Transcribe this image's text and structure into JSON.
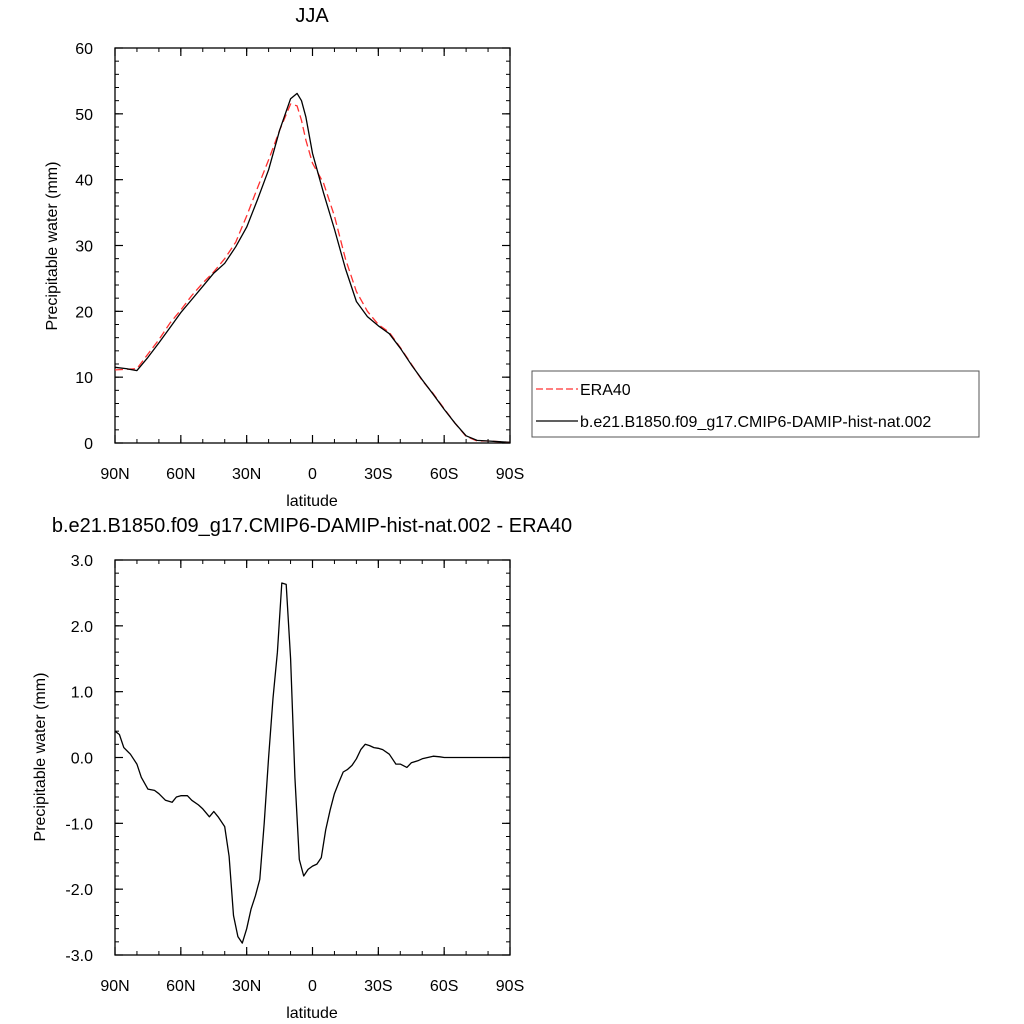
{
  "chart_data": [
    {
      "type": "line",
      "title": "JJA",
      "xlabel": "latitude",
      "ylabel": "Precipitable water (mm)",
      "xlim": [
        90,
        -90
      ],
      "ylim": [
        0,
        60
      ],
      "xticks": [
        {
          "value": 90,
          "label": "90N"
        },
        {
          "value": 60,
          "label": "60N"
        },
        {
          "value": 30,
          "label": "30N"
        },
        {
          "value": 0,
          "label": "0"
        },
        {
          "value": -30,
          "label": "30S"
        },
        {
          "value": -60,
          "label": "60S"
        },
        {
          "value": -90,
          "label": "90S"
        }
      ],
      "yticks": [
        {
          "value": 0,
          "label": "0"
        },
        {
          "value": 10,
          "label": "10"
        },
        {
          "value": 20,
          "label": "20"
        },
        {
          "value": 30,
          "label": "30"
        },
        {
          "value": 40,
          "label": "40"
        },
        {
          "value": 50,
          "label": "50"
        },
        {
          "value": 60,
          "label": "60"
        }
      ],
      "legend": {
        "placement": "right"
      },
      "series": [
        {
          "name": "ERA40",
          "color": "#ff3030",
          "dash": "dashed",
          "x": [
            90,
            85,
            80,
            75,
            70,
            65,
            60,
            55,
            50,
            45,
            40,
            35,
            30,
            25,
            20,
            15,
            10,
            7,
            5,
            3,
            0,
            -5,
            -10,
            -15,
            -20,
            -25,
            -30,
            -35,
            -40,
            -45,
            -50,
            -55,
            -60,
            -65,
            -70,
            -75,
            -80,
            -85,
            -90
          ],
          "y": [
            11.1,
            11.2,
            11.3,
            13.5,
            15.7,
            18.2,
            20.2,
            22.4,
            24.3,
            26.0,
            28.0,
            30.5,
            34.5,
            38.8,
            43.0,
            47.5,
            51.5,
            51.2,
            49.0,
            46.0,
            42.5,
            39.5,
            34.5,
            28.0,
            23.0,
            20.0,
            18.0,
            16.8,
            14.5,
            12.0,
            9.5,
            7.5,
            5.2,
            3.0,
            1.0,
            0.3,
            0.3,
            0.2,
            0.1
          ]
        },
        {
          "name": "b.e21.B1850.f09_g17.CMIP6-DAMIP-hist-nat.002",
          "color": "#000000",
          "dash": "solid",
          "x": [
            90,
            85,
            80,
            75,
            70,
            65,
            60,
            55,
            50,
            45,
            40,
            35,
            30,
            25,
            20,
            15,
            10,
            7,
            5,
            3,
            0,
            -5,
            -10,
            -15,
            -20,
            -25,
            -30,
            -35,
            -40,
            -45,
            -50,
            -55,
            -60,
            -65,
            -70,
            -75,
            -80,
            -85,
            -90
          ],
          "y": [
            11.5,
            11.3,
            11.0,
            13.0,
            15.2,
            17.5,
            19.8,
            21.8,
            23.8,
            25.8,
            27.3,
            29.8,
            32.8,
            37.0,
            41.5,
            47.5,
            52.3,
            53.1,
            52.0,
            49.5,
            44.0,
            38.0,
            32.5,
            26.5,
            21.5,
            19.2,
            17.8,
            16.6,
            14.4,
            11.9,
            9.6,
            7.4,
            5.1,
            3.0,
            1.1,
            0.4,
            0.3,
            0.2,
            0.1
          ]
        }
      ]
    },
    {
      "type": "line",
      "title": "b.e21.B1850.f09_g17.CMIP6-DAMIP-hist-nat.002 - ERA40",
      "xlabel": "latitude",
      "ylabel": "Precipitable water (mm)",
      "xlim": [
        90,
        -90
      ],
      "ylim": [
        -3.0,
        3.0
      ],
      "xticks": [
        {
          "value": 90,
          "label": "90N"
        },
        {
          "value": 60,
          "label": "60N"
        },
        {
          "value": 30,
          "label": "30N"
        },
        {
          "value": 0,
          "label": "0"
        },
        {
          "value": -30,
          "label": "30S"
        },
        {
          "value": -60,
          "label": "60S"
        },
        {
          "value": -90,
          "label": "90S"
        }
      ],
      "yticks": [
        {
          "value": -3.0,
          "label": "-3.0"
        },
        {
          "value": -2.0,
          "label": "-2.0"
        },
        {
          "value": -1.0,
          "label": "-1.0"
        },
        {
          "value": 0.0,
          "label": "0.0"
        },
        {
          "value": 1.0,
          "label": "1.0"
        },
        {
          "value": 2.0,
          "label": "2.0"
        },
        {
          "value": 3.0,
          "label": "3.0"
        }
      ],
      "series": [
        {
          "color": "#000000",
          "dash": "solid",
          "x": [
            90,
            88,
            86,
            83,
            80,
            78,
            75,
            72,
            70,
            67,
            64,
            62,
            60,
            57,
            55,
            52,
            50,
            47,
            45,
            43,
            40,
            38,
            36,
            34,
            32,
            30,
            28,
            26,
            24,
            22,
            20,
            18,
            16,
            14,
            12,
            10,
            8,
            6,
            4,
            2,
            0,
            -2,
            -4,
            -6,
            -8,
            -10,
            -12,
            -14,
            -16,
            -18,
            -20,
            -22,
            -24,
            -26,
            -28,
            -30,
            -32,
            -35,
            -38,
            -40,
            -43,
            -45,
            -48,
            -50,
            -55,
            -58,
            -60,
            -63,
            -65,
            -68,
            -70,
            -73,
            -75,
            -78,
            -80,
            -83,
            -85,
            -88,
            -90
          ],
          "y": [
            0.4,
            0.35,
            0.15,
            0.05,
            -0.1,
            -0.3,
            -0.48,
            -0.5,
            -0.55,
            -0.65,
            -0.68,
            -0.6,
            -0.58,
            -0.58,
            -0.65,
            -0.72,
            -0.78,
            -0.9,
            -0.82,
            -0.9,
            -1.05,
            -1.5,
            -2.4,
            -2.72,
            -2.82,
            -2.6,
            -2.3,
            -2.1,
            -1.85,
            -1.0,
            0.0,
            0.9,
            1.6,
            2.65,
            2.63,
            1.5,
            -0.3,
            -1.55,
            -1.8,
            -1.7,
            -1.65,
            -1.62,
            -1.52,
            -1.1,
            -0.8,
            -0.55,
            -0.38,
            -0.22,
            -0.18,
            -0.12,
            -0.02,
            0.12,
            0.2,
            0.18,
            0.15,
            0.14,
            0.12,
            0.05,
            -0.1,
            -0.1,
            -0.15,
            -0.08,
            -0.05,
            -0.02,
            0.02,
            0.01,
            0.0,
            0.0,
            0.0,
            0.0,
            0.0,
            0.0,
            0.0,
            0.0,
            0.0,
            0.0,
            0.0,
            0.0,
            0.0
          ]
        }
      ]
    }
  ]
}
